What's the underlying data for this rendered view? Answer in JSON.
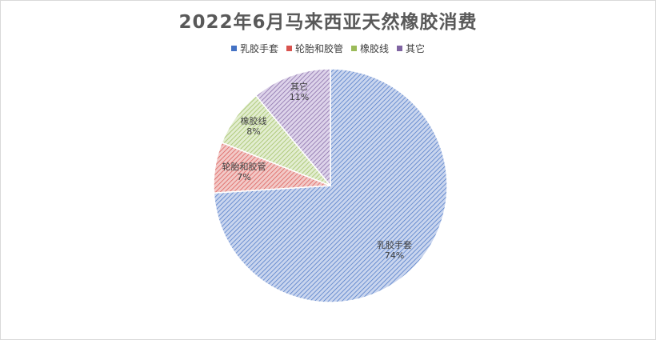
{
  "chart_data": {
    "type": "pie",
    "title": "2022年6月马来西亚天然橡胶消费",
    "legend_position": "top",
    "categories": [
      "乳胶手套",
      "轮胎和胶管",
      "橡胶线",
      "其它"
    ],
    "values": [
      74,
      7,
      8,
      11
    ],
    "value_labels": [
      "74%",
      "7%",
      "8%",
      "11%"
    ],
    "colors": [
      "#4472c4",
      "#d9534f",
      "#9bbb59",
      "#8064a2"
    ],
    "fills": [
      "#c9d5ee",
      "#f2c9c7",
      "#e2edd0",
      "#ddd3ea"
    ]
  }
}
